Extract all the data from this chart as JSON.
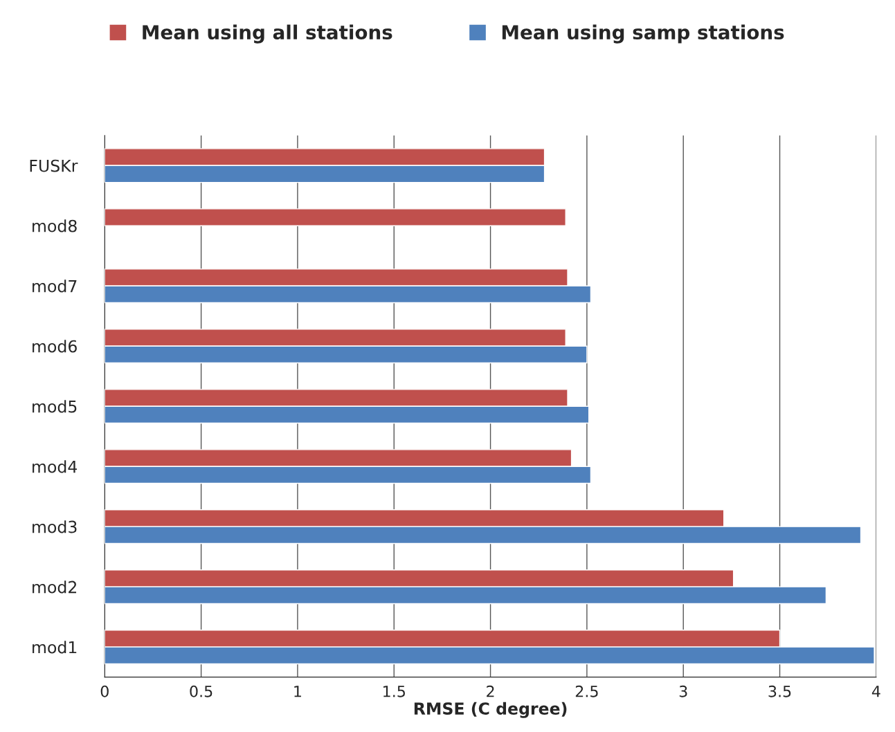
{
  "chart_data": {
    "type": "bar",
    "orientation": "horizontal",
    "xlabel": "RMSE (C degree)",
    "categories": [
      "FUSKr",
      "mod8",
      "mod7",
      "mod6",
      "mod5",
      "mod4",
      "mod3",
      "mod2",
      "mod1"
    ],
    "series": [
      {
        "name": "Mean using all stations",
        "color": "#c0504d",
        "values": [
          2.28,
          2.39,
          2.4,
          2.39,
          2.4,
          2.42,
          3.21,
          3.26,
          3.5
        ]
      },
      {
        "name": "Mean using samp stations",
        "color": "#4f81bd",
        "values": [
          2.28,
          null,
          2.52,
          2.5,
          2.51,
          2.52,
          3.92,
          3.74,
          3.99
        ]
      }
    ],
    "xlim": [
      0,
      4
    ],
    "xticks": [
      0,
      0.5,
      1,
      1.5,
      2,
      2.5,
      3,
      3.5,
      4
    ],
    "grid": "x",
    "legend": "top"
  }
}
